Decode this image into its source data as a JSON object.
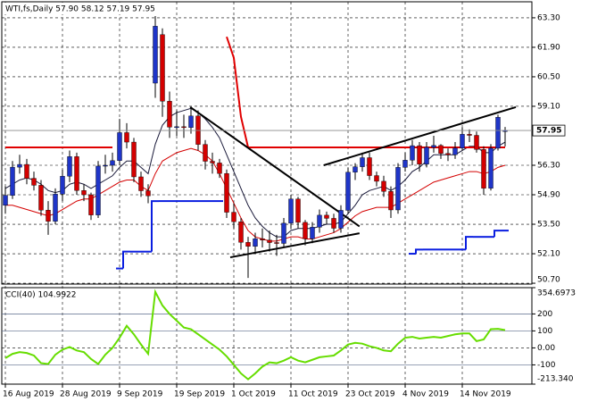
{
  "chart_data": [
    {
      "type": "candlestick",
      "title": "WTI,fs,Daily  57.90 58.12 57.19 57.95",
      "categories": [
        "16 Aug 2019",
        null,
        null,
        null,
        null,
        null,
        null,
        null,
        "28 Aug 2019",
        null,
        null,
        null,
        null,
        null,
        null,
        null,
        "9 Sep 2019",
        null,
        null,
        null,
        null,
        null,
        null,
        null,
        "19 Sep 2019",
        null,
        null,
        null,
        null,
        null,
        null,
        null,
        "1 Oct 2019",
        null,
        null,
        null,
        null,
        null,
        null,
        null,
        "11 Oct 2019",
        null,
        null,
        null,
        null,
        null,
        null,
        null,
        "23 Oct 2019",
        null,
        null,
        null,
        null,
        null,
        null,
        null,
        "4 Nov 2019",
        null,
        null,
        null,
        null,
        null,
        null,
        null,
        "14 Nov 2019",
        null,
        null,
        null,
        null,
        null,
        null
      ],
      "open": [
        54.4,
        54.87,
        56.21,
        56.34,
        55.68,
        55.35,
        54.17,
        53.64,
        54.93,
        55.78,
        56.71,
        55.1,
        54.9,
        53.94,
        56.26,
        56.3,
        56.52,
        57.85,
        57.4,
        55.75,
        55.09,
        60.2,
        62.5,
        59.34,
        58.11,
        58.13,
        58.09,
        58.64,
        57.29,
        56.49,
        56.41,
        55.91,
        54.07,
        53.62,
        52.64,
        52.45,
        52.81,
        52.75,
        52.63,
        52.59,
        53.55,
        54.7,
        53.59,
        52.81,
        53.36,
        53.93,
        53.78,
        53.31,
        54.16,
        55.97,
        56.23,
        56.66,
        55.81,
        55.54,
        55.06,
        54.18,
        56.2,
        56.54,
        57.23,
        56.35,
        57.15,
        57.24,
        56.86,
        56.8,
        57.12,
        57.77,
        57.72,
        57.05,
        55.21,
        57.11,
        57.9
      ],
      "high": [
        55.3,
        56.5,
        56.8,
        56.6,
        56.0,
        55.6,
        54.6,
        55.2,
        56.1,
        57.0,
        56.9,
        55.4,
        55.0,
        56.5,
        56.8,
        56.9,
        58.5,
        58.3,
        57.6,
        56.0,
        55.4,
        63.38,
        62.8,
        59.8,
        58.9,
        58.7,
        59.1,
        58.9,
        57.5,
        56.9,
        56.6,
        56.1,
        54.5,
        53.8,
        52.9,
        53.1,
        53.3,
        53.2,
        53.0,
        53.8,
        54.9,
        54.8,
        53.7,
        53.6,
        54.2,
        54.1,
        54.0,
        54.4,
        56.2,
        56.4,
        56.9,
        56.9,
        56.0,
        55.8,
        55.3,
        56.4,
        56.9,
        57.5,
        57.4,
        57.4,
        57.7,
        57.3,
        57.1,
        57.4,
        58.1,
        58.0,
        57.9,
        57.2,
        57.3,
        58.7,
        58.12
      ],
      "low": [
        54.0,
        54.7,
        55.9,
        55.4,
        55.1,
        53.9,
        53.0,
        53.5,
        54.6,
        55.5,
        54.9,
        54.6,
        53.7,
        53.8,
        55.9,
        56.0,
        56.3,
        57.1,
        55.5,
        54.8,
        54.5,
        59.5,
        58.6,
        57.6,
        57.7,
        57.6,
        57.8,
        57.0,
        56.1,
        55.9,
        55.7,
        53.8,
        53.3,
        52.3,
        50.95,
        52.1,
        52.4,
        52.2,
        52.0,
        52.4,
        53.3,
        53.3,
        52.5,
        52.6,
        53.1,
        53.5,
        53.1,
        53.1,
        54.0,
        55.6,
        56.0,
        55.6,
        55.3,
        54.8,
        53.8,
        54.0,
        56.0,
        56.3,
        56.0,
        56.2,
        56.9,
        56.6,
        56.5,
        56.6,
        57.0,
        57.4,
        56.9,
        54.9,
        55.1,
        57.0,
        57.19
      ],
      "close": [
        54.87,
        56.21,
        56.34,
        55.68,
        55.35,
        54.17,
        53.64,
        54.93,
        55.78,
        56.71,
        55.1,
        54.9,
        53.94,
        56.26,
        56.3,
        56.52,
        57.85,
        57.4,
        55.75,
        55.09,
        54.85,
        62.9,
        59.34,
        58.11,
        58.13,
        58.09,
        58.64,
        57.29,
        56.49,
        56.41,
        55.91,
        54.07,
        53.62,
        52.64,
        52.45,
        52.81,
        52.75,
        52.63,
        52.59,
        53.55,
        54.7,
        53.59,
        52.81,
        53.36,
        53.93,
        53.78,
        53.31,
        54.16,
        55.97,
        56.23,
        56.66,
        55.81,
        55.54,
        55.06,
        54.18,
        56.2,
        56.54,
        57.23,
        56.35,
        57.15,
        57.24,
        56.86,
        56.8,
        57.12,
        57.77,
        57.72,
        57.05,
        55.21,
        57.11,
        58.58,
        57.95
      ],
      "up_color": "#1f35c8",
      "down_color": "#d40000",
      "lines": [
        {
          "color": "#d40000",
          "style": "thin",
          "values": [
            54.4,
            54.4,
            54.3,
            54.2,
            54.1,
            54.0,
            53.9,
            54.0,
            54.2,
            54.4,
            54.6,
            54.7,
            54.7,
            54.9,
            55.1,
            55.3,
            55.5,
            55.6,
            55.6,
            55.3,
            55.1,
            55.9,
            56.5,
            56.7,
            56.9,
            57.0,
            57.1,
            57.0,
            56.8,
            56.5,
            55.9,
            55.2,
            54.5,
            53.8,
            53.2,
            52.9,
            52.8,
            52.7,
            52.7,
            52.8,
            52.9,
            52.9,
            52.8,
            52.8,
            52.9,
            53.0,
            53.1,
            53.3,
            53.6,
            53.9,
            54.1,
            54.2,
            54.3,
            54.3,
            54.3,
            54.5,
            54.7,
            54.9,
            55.1,
            55.3,
            55.5,
            55.6,
            55.7,
            55.8,
            55.9,
            56.0,
            56.0,
            55.9,
            56.0,
            56.2,
            56.3
          ]
        },
        {
          "color": "#1a1a3a",
          "style": "thin",
          "values": [
            55.2,
            55.4,
            55.6,
            55.7,
            55.6,
            55.4,
            55.1,
            55.0,
            55.1,
            55.4,
            55.5,
            55.4,
            55.2,
            55.4,
            55.6,
            55.8,
            56.2,
            56.5,
            56.5,
            56.2,
            55.9,
            57.3,
            58.2,
            58.6,
            58.8,
            58.9,
            59.0,
            58.8,
            58.5,
            58.1,
            57.6,
            56.8,
            56.0,
            55.2,
            54.4,
            53.8,
            53.4,
            53.1,
            52.9,
            52.9,
            53.2,
            53.3,
            53.3,
            53.3,
            53.4,
            53.5,
            53.5,
            53.6,
            54.0,
            54.4,
            54.9,
            55.1,
            55.2,
            55.3,
            55.1,
            55.3,
            55.6,
            56.0,
            56.2,
            56.5,
            56.8,
            56.8,
            56.8,
            56.8,
            57.0,
            57.2,
            57.2,
            56.9,
            56.9,
            57.2,
            57.4
          ]
        },
        {
          "color": "#0a1ee0",
          "style": "step",
          "values": [
            null,
            null,
            null,
            null,
            null,
            null,
            null,
            null,
            null,
            null,
            null,
            null,
            null,
            null,
            null,
            null,
            51.4,
            52.2,
            52.2,
            52.2,
            52.2,
            54.6,
            54.6,
            54.6,
            54.6,
            54.6,
            54.6,
            54.6,
            54.6,
            54.6,
            54.6,
            null,
            null,
            null,
            null,
            null,
            null,
            null,
            null,
            null,
            null,
            null,
            null,
            null,
            null,
            null,
            null,
            null,
            null,
            null,
            null,
            null,
            null,
            null,
            null,
            null,
            null,
            52.1,
            52.3,
            52.3,
            52.3,
            52.3,
            52.3,
            52.3,
            52.3,
            52.9,
            52.9,
            52.9,
            52.9,
            53.2,
            53.2
          ]
        },
        {
          "color": "#e00000",
          "style": "thick",
          "values": [
            57.15,
            57.15,
            57.15,
            57.15,
            57.15,
            57.15,
            57.15,
            57.15,
            57.15,
            57.15,
            57.15,
            57.15,
            57.15,
            57.15,
            57.15,
            57.15,
            null,
            null,
            null,
            null,
            null,
            null,
            null,
            null,
            null,
            null,
            null,
            null,
            null,
            null,
            null,
            62.4,
            61.4,
            58.6,
            57.15,
            57.15,
            57.15,
            57.15,
            57.15,
            57.15,
            57.15,
            57.15,
            57.15,
            57.15,
            57.15,
            57.15,
            57.15,
            57.15,
            57.15,
            57.15,
            57.15,
            57.15,
            57.15,
            57.15,
            57.15,
            57.15,
            57.15,
            57.15,
            57.15,
            57.15,
            57.15,
            57.15,
            57.15,
            57.15,
            57.15,
            57.15,
            57.15,
            57.15,
            57.15,
            57.15,
            57.15
          ]
        }
      ],
      "trendlines": [
        {
          "color": "#000000",
          "x": [
            25.9,
            49.6
          ],
          "y": [
            59.06,
            53.4
          ]
        },
        {
          "color": "#000000",
          "x": [
            31.5,
            49.6
          ],
          "y": [
            51.93,
            53.07
          ]
        },
        {
          "color": "#000000",
          "x": [
            44.6,
            71.5
          ],
          "y": [
            56.3,
            59.06
          ]
        }
      ],
      "last_price": {
        "value": 57.95,
        "label": "57.95"
      },
      "ylim": [
        50.66,
        64.06
      ],
      "yticks": [
        {
          "value": 63.3,
          "label": "63.30"
        },
        {
          "value": 61.9,
          "label": "61.90"
        },
        {
          "value": 60.5,
          "label": "60.50"
        },
        {
          "value": 59.1,
          "label": "59.10"
        },
        {
          "value": 56.3,
          "label": "56.30"
        },
        {
          "value": 54.9,
          "label": "54.90"
        },
        {
          "value": 53.5,
          "label": "53.50"
        },
        {
          "value": 52.1,
          "label": "52.10"
        },
        {
          "value": 50.7,
          "label": "50.70"
        }
      ],
      "grid": true
    },
    {
      "type": "line",
      "title": "CCI(40) 104.9922",
      "color": "#66dd00",
      "values": [
        -60,
        -35,
        -25,
        -30,
        -45,
        -90,
        -95,
        -40,
        -10,
        5,
        -15,
        -25,
        -65,
        -95,
        -40,
        0,
        60,
        130,
        80,
        20,
        -35,
        330,
        250,
        200,
        160,
        120,
        110,
        80,
        50,
        20,
        -10,
        -50,
        -100,
        -150,
        -185,
        -150,
        -110,
        -85,
        -90,
        -75,
        -55,
        -75,
        -85,
        -70,
        -55,
        -50,
        -45,
        -15,
        20,
        30,
        25,
        10,
        0,
        -15,
        -20,
        25,
        60,
        65,
        55,
        60,
        65,
        60,
        70,
        80,
        85,
        85,
        40,
        50,
        110,
        112,
        104.9922
      ],
      "ylim": [
        -213.34,
        354.6973
      ],
      "yticks": [
        354.6973,
        200,
        100,
        {
          "value": 0,
          "label": "0.00"
        },
        -100,
        {
          "value": -213.34,
          "label": "-213.340"
        }
      ]
    }
  ]
}
